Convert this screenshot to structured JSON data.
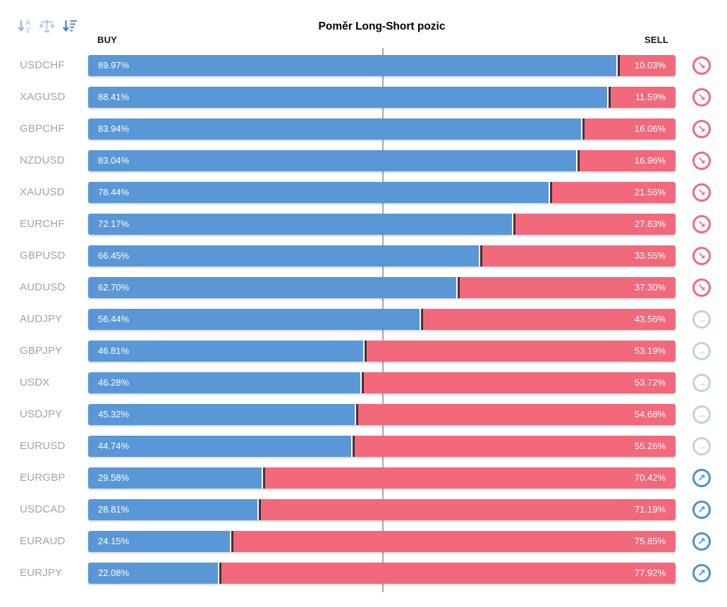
{
  "header": {
    "title": "Poměr Long-Short pozic",
    "buy_label": "BUY",
    "sell_label": "SELL",
    "toolbar": {
      "sort_alpha": "sort-alphabetical",
      "scale_balance": "scale-balance",
      "sort_amount": "sort-amount"
    }
  },
  "colors": {
    "buy_bar": "#5997d6",
    "sell_bar": "#f2697b",
    "segment_divider": "#44323a",
    "pair_label": "#a4a4a4",
    "centerline": "#a8a8a8",
    "signal_down": "#f2697b",
    "signal_neutral": "#c4d0de",
    "signal_up": "#4b90d6",
    "toolbar_inactive": "#aac6e6",
    "toolbar_active": "#4f86c6"
  },
  "chart_data": {
    "type": "bar",
    "variant": "horizontal-stacked-100",
    "title": "Poměr Long-Short pozic",
    "series": [
      {
        "name": "BUY"
      },
      {
        "name": "SELL"
      }
    ],
    "value_range": [
      0,
      100
    ],
    "center_guide": 50,
    "rows": [
      {
        "symbol": "USDCHF",
        "buy": 89.97,
        "sell": 10.03,
        "buy_label": "89.97%",
        "sell_label": "10.03%",
        "signal": "down"
      },
      {
        "symbol": "XAGUSD",
        "buy": 88.41,
        "sell": 11.59,
        "buy_label": "88.41%",
        "sell_label": "11.59%",
        "signal": "down"
      },
      {
        "symbol": "GBPCHF",
        "buy": 83.94,
        "sell": 16.06,
        "buy_label": "83.94%",
        "sell_label": "16.06%",
        "signal": "down"
      },
      {
        "symbol": "NZDUSD",
        "buy": 83.04,
        "sell": 16.96,
        "buy_label": "83.04%",
        "sell_label": "16.96%",
        "signal": "down"
      },
      {
        "symbol": "XAUUSD",
        "buy": 78.44,
        "sell": 21.56,
        "buy_label": "78.44%",
        "sell_label": "21.56%",
        "signal": "down"
      },
      {
        "symbol": "EURCHF",
        "buy": 72.17,
        "sell": 27.83,
        "buy_label": "72.17%",
        "sell_label": "27.83%",
        "signal": "down"
      },
      {
        "symbol": "GBPUSD",
        "buy": 66.45,
        "sell": 33.55,
        "buy_label": "66.45%",
        "sell_label": "33.55%",
        "signal": "down"
      },
      {
        "symbol": "AUDUSD",
        "buy": 62.7,
        "sell": 37.3,
        "buy_label": "62.70%",
        "sell_label": "37.30%",
        "signal": "down"
      },
      {
        "symbol": "AUDJPY",
        "buy": 56.44,
        "sell": 43.56,
        "buy_label": "56.44%",
        "sell_label": "43.56%",
        "signal": "neutral"
      },
      {
        "symbol": "GBPJPY",
        "buy": 46.81,
        "sell": 53.19,
        "buy_label": "46.81%",
        "sell_label": "53.19%",
        "signal": "neutral"
      },
      {
        "symbol": "USDX",
        "buy": 46.28,
        "sell": 53.72,
        "buy_label": "46.28%",
        "sell_label": "53.72%",
        "signal": "neutral"
      },
      {
        "symbol": "USDJPY",
        "buy": 45.32,
        "sell": 54.68,
        "buy_label": "45.32%",
        "sell_label": "54.68%",
        "signal": "neutral"
      },
      {
        "symbol": "EURUSD",
        "buy": 44.74,
        "sell": 55.26,
        "buy_label": "44.74%",
        "sell_label": "55.26%",
        "signal": "neutral"
      },
      {
        "symbol": "EURGBP",
        "buy": 29.58,
        "sell": 70.42,
        "buy_label": "29.58%",
        "sell_label": "70.42%",
        "signal": "up"
      },
      {
        "symbol": "USDCAD",
        "buy": 28.81,
        "sell": 71.19,
        "buy_label": "28.81%",
        "sell_label": "71.19%",
        "signal": "up"
      },
      {
        "symbol": "EURAUD",
        "buy": 24.15,
        "sell": 75.85,
        "buy_label": "24.15%",
        "sell_label": "75.85%",
        "signal": "up"
      },
      {
        "symbol": "EURJPY",
        "buy": 22.08,
        "sell": 77.92,
        "buy_label": "22.08%",
        "sell_label": "77.92%",
        "signal": "up"
      }
    ]
  }
}
